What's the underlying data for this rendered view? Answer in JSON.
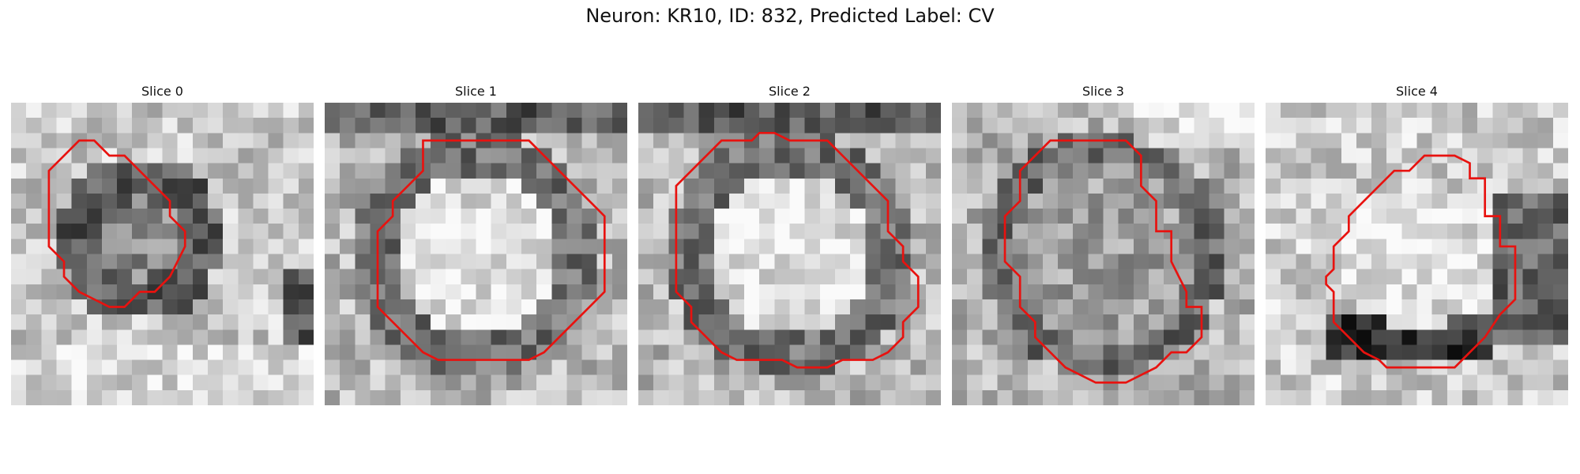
{
  "figure": {
    "title": "Neuron: KR10, ID: 832, Predicted Label: CV"
  },
  "panels": [
    {
      "title": "Slice 0",
      "pattern": "dark-ring",
      "contour": [
        [
          4.5,
          2.5
        ],
        [
          5.5,
          2.5
        ],
        [
          6.5,
          3.5
        ],
        [
          7.5,
          3.5
        ],
        [
          8.5,
          4.5
        ],
        [
          9.5,
          5.5
        ],
        [
          10.5,
          6.5
        ],
        [
          10.5,
          7.5
        ],
        [
          11.5,
          8.5
        ],
        [
          11.5,
          9.5
        ],
        [
          11,
          10.5
        ],
        [
          10.5,
          11.5
        ],
        [
          9.5,
          12.5
        ],
        [
          8.5,
          12.5
        ],
        [
          7.5,
          13.5
        ],
        [
          6.5,
          13.5
        ],
        [
          5.5,
          13
        ],
        [
          4.5,
          12.5
        ],
        [
          3.5,
          11.5
        ],
        [
          3.5,
          10.5
        ],
        [
          2.5,
          9.5
        ],
        [
          2.5,
          8.5
        ],
        [
          2.5,
          7.5
        ],
        [
          2.5,
          6.5
        ],
        [
          2.5,
          5.5
        ],
        [
          2.5,
          4.5
        ],
        [
          3.5,
          3.5
        ]
      ]
    },
    {
      "title": "Slice 1",
      "pattern": "bright-center",
      "contour": [
        [
          6.5,
          2.5
        ],
        [
          13.5,
          2.5
        ],
        [
          14.5,
          3.5
        ],
        [
          15.5,
          4.5
        ],
        [
          16.5,
          5.5
        ],
        [
          17.5,
          6.5
        ],
        [
          18.5,
          7.5
        ],
        [
          18.5,
          9.5
        ],
        [
          18.5,
          12.5
        ],
        [
          17.5,
          13.5
        ],
        [
          16.5,
          14.5
        ],
        [
          15.5,
          15.5
        ],
        [
          14.5,
          16.5
        ],
        [
          13.5,
          17
        ],
        [
          7.5,
          17
        ],
        [
          6.5,
          16.5
        ],
        [
          5.5,
          15.5
        ],
        [
          4.5,
          14.5
        ],
        [
          3.5,
          13.5
        ],
        [
          3.5,
          8.5
        ],
        [
          4.5,
          7.5
        ],
        [
          4.5,
          6.5
        ],
        [
          5.5,
          5.5
        ],
        [
          6.5,
          4.5
        ],
        [
          6.5,
          3.5
        ]
      ]
    },
    {
      "title": "Slice 2",
      "pattern": "bright-center",
      "contour": [
        [
          5.5,
          2.5
        ],
        [
          7.5,
          2.5
        ],
        [
          8,
          2
        ],
        [
          9,
          2
        ],
        [
          10,
          2.5
        ],
        [
          12.5,
          2.5
        ],
        [
          13.5,
          3.5
        ],
        [
          14.5,
          4.5
        ],
        [
          15.5,
          5.5
        ],
        [
          16.5,
          6.5
        ],
        [
          16.5,
          7.5
        ],
        [
          16.5,
          8.5
        ],
        [
          17.5,
          9.5
        ],
        [
          17.5,
          10.5
        ],
        [
          18.5,
          11.5
        ],
        [
          18.5,
          13.5
        ],
        [
          17.5,
          14.5
        ],
        [
          17.5,
          15.5
        ],
        [
          16.5,
          16.5
        ],
        [
          15.5,
          17
        ],
        [
          13.5,
          17
        ],
        [
          12.5,
          17.5
        ],
        [
          10.5,
          17.5
        ],
        [
          9.5,
          17
        ],
        [
          6.5,
          17
        ],
        [
          5.5,
          16.5
        ],
        [
          4.5,
          15.5
        ],
        [
          3.5,
          14.5
        ],
        [
          3.5,
          13.5
        ],
        [
          2.5,
          12.5
        ],
        [
          2.5,
          5.5
        ],
        [
          3.5,
          4.5
        ],
        [
          4.5,
          3.5
        ]
      ]
    },
    {
      "title": "Slice 3",
      "pattern": "ring-mottled",
      "contour": [
        [
          6.5,
          2.5
        ],
        [
          11.5,
          2.5
        ],
        [
          12.5,
          3.5
        ],
        [
          12.5,
          5.5
        ],
        [
          13,
          6
        ],
        [
          13.5,
          6.5
        ],
        [
          13.5,
          8.5
        ],
        [
          14.5,
          8.5
        ],
        [
          14.5,
          10.5
        ],
        [
          15,
          11.5
        ],
        [
          15.5,
          12.5
        ],
        [
          15.5,
          13.5
        ],
        [
          16.5,
          13.5
        ],
        [
          16.5,
          15.5
        ],
        [
          15.5,
          16.5
        ],
        [
          14.5,
          16.5
        ],
        [
          13.5,
          17.5
        ],
        [
          12.5,
          18
        ],
        [
          11.5,
          18.5
        ],
        [
          9.5,
          18.5
        ],
        [
          8.5,
          18
        ],
        [
          7.5,
          17.5
        ],
        [
          6.5,
          16.5
        ],
        [
          5.5,
          15.5
        ],
        [
          5.5,
          14.5
        ],
        [
          4.5,
          13.5
        ],
        [
          4.5,
          12.5
        ],
        [
          4.5,
          11.5
        ],
        [
          3.5,
          10.5
        ],
        [
          3.5,
          9.5
        ],
        [
          3.5,
          8.5
        ],
        [
          3.5,
          7.5
        ],
        [
          4.5,
          6.5
        ],
        [
          4.5,
          4.5
        ],
        [
          5.5,
          3.5
        ]
      ]
    },
    {
      "title": "Slice 4",
      "pattern": "bright-dark-band",
      "contour": [
        [
          7.5,
          5.5
        ],
        [
          8.5,
          4.5
        ],
        [
          9.5,
          4.5
        ],
        [
          10.5,
          3.5
        ],
        [
          12.5,
          3.5
        ],
        [
          13.5,
          4
        ],
        [
          13.5,
          5
        ],
        [
          14.5,
          5
        ],
        [
          14.5,
          7.5
        ],
        [
          15.5,
          7.5
        ],
        [
          15.5,
          9.5
        ],
        [
          16.5,
          9.5
        ],
        [
          16.5,
          11.5
        ],
        [
          16.5,
          13
        ],
        [
          15.5,
          14
        ],
        [
          14.5,
          15.5
        ],
        [
          13.5,
          16.5
        ],
        [
          12.5,
          17.5
        ],
        [
          8,
          17.5
        ],
        [
          7.5,
          17
        ],
        [
          6.5,
          16.5
        ],
        [
          5.5,
          15.5
        ],
        [
          4.5,
          14.5
        ],
        [
          4.5,
          12.5
        ],
        [
          4,
          12
        ],
        [
          4,
          11.5
        ],
        [
          4.5,
          11
        ],
        [
          4.5,
          9.5
        ],
        [
          5.5,
          8.5
        ],
        [
          5.5,
          7.5
        ],
        [
          6.5,
          6.5
        ]
      ]
    }
  ],
  "colors": {
    "contour": "#e8120f",
    "background": "#ffffff"
  }
}
